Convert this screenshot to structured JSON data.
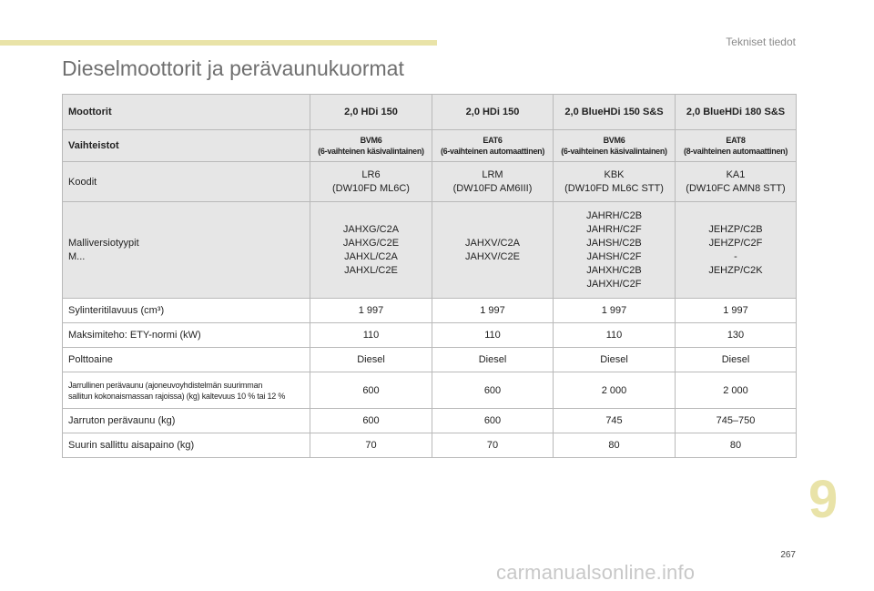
{
  "header": {
    "section_label": "Tekniset tiedot",
    "title": "Dieselmoottorit ja perävaunukuormat"
  },
  "table": {
    "head": {
      "label": "Moottorit",
      "cols": [
        "2,0 HDi 150",
        "2,0 HDi 150",
        "2,0 BlueHDi 150 S&S",
        "2,0 BlueHDi 180 S&S"
      ]
    },
    "gearbox": {
      "label": "Vaihteistot",
      "cols": [
        "BVM6\n(6-vaihteinen käsivalintainen)",
        "EAT6\n(6-vaihteinen automaattinen)",
        "BVM6\n(6-vaihteinen käsivalintainen)",
        "EAT8\n(8-vaihteinen automaattinen)"
      ]
    },
    "codes": {
      "label": "Koodit",
      "cols": [
        "LR6\n(DW10FD ML6C)",
        "LRM\n(DW10FD AM6III)",
        "KBK\n(DW10FD ML6C STT)",
        "KA1\n(DW10FC AMN8 STT)"
      ]
    },
    "models": {
      "label": "Malliversiotyypit\nM...",
      "cols": [
        "JAHXG/C2A\nJAHXG/C2E\nJAHXL/C2A\nJAHXL/C2E",
        "JAHXV/C2A\nJAHXV/C2E",
        "JAHRH/C2B\nJAHRH/C2F\nJAHSH/C2B\nJAHSH/C2F\nJAHXH/C2B\nJAHXH/C2F",
        "JEHZP/C2B\nJEHZP/C2F\n-\nJEHZP/C2K"
      ]
    },
    "displacement": {
      "label": "Sylinteritilavuus (cm³)",
      "cols": [
        "1 997",
        "1 997",
        "1 997",
        "1 997"
      ]
    },
    "power": {
      "label": "Maksimiteho: ETY-normi (kW)",
      "cols": [
        "110",
        "110",
        "110",
        "130"
      ]
    },
    "fuel": {
      "label": "Polttoaine",
      "cols": [
        "Diesel",
        "Diesel",
        "Diesel",
        "Diesel"
      ]
    },
    "braked_trailer": {
      "label": "Jarrullinen perävaunu (ajoneuvoyhdistelmän suurimman\nsallitun kokonaismassan rajoissa) (kg) kaltevuus 10 % tai 12 %",
      "cols": [
        "600",
        "600",
        "2 000",
        "2 000"
      ]
    },
    "unbraked_trailer": {
      "label": "Jarruton perävaunu (kg)",
      "cols": [
        "600",
        "600",
        "745",
        "745–750"
      ]
    },
    "nose_weight": {
      "label": "Suurin sallittu aisapaino (kg)",
      "cols": [
        "70",
        "70",
        "80",
        "80"
      ]
    }
  },
  "footer": {
    "chapter_number": "9",
    "page_number": "267",
    "watermark": "carmanualsonline.info"
  },
  "colors": {
    "accent_bar": "#e9e3a8",
    "header_bg": "#e6e6e6",
    "border": "#b9b9b9"
  }
}
